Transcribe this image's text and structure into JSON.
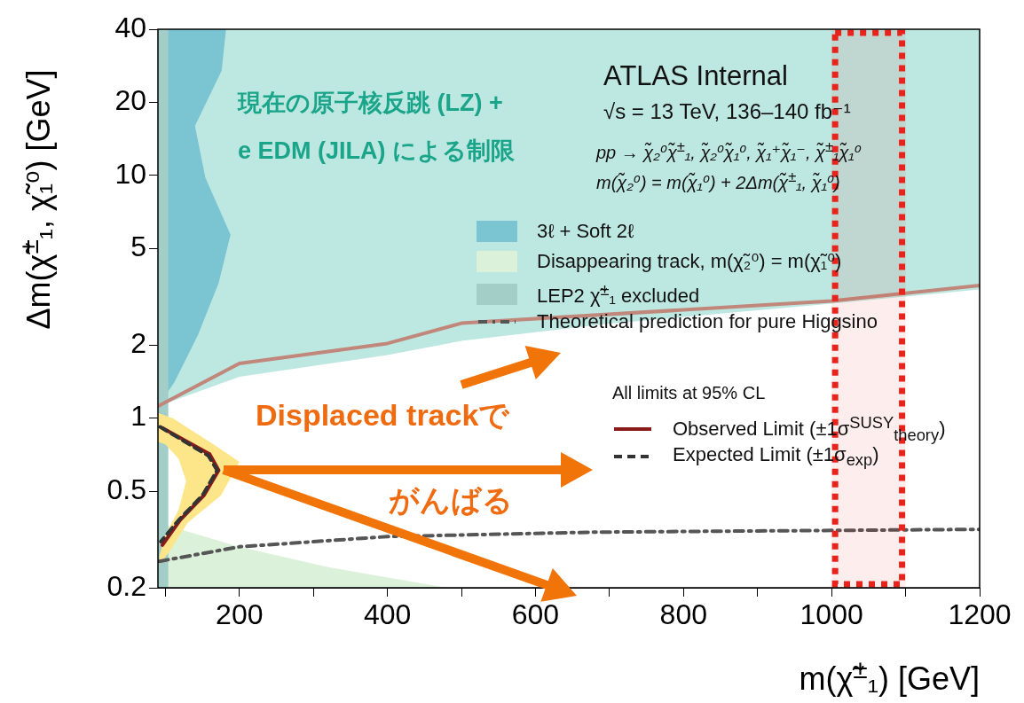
{
  "chart_data": {
    "type": "line",
    "xlabel": "m(χ̃$^{±}$₁) [GeV]",
    "ylabel": "Δm(χ̃$^{±}$₁, χ̃₁⁰) [GeV]",
    "log": "y",
    "legend": "right",
    "xlim": [
      90,
      1200
    ],
    "ylim": [
      0.2,
      40
    ],
    "xticks": [
      {
        "value": 100,
        "label": null
      },
      200,
      {
        "value": 300,
        "label": null
      },
      400,
      {
        "value": 500,
        "label": null
      },
      600,
      {
        "value": 700,
        "label": null
      },
      800,
      {
        "value": 900,
        "label": null
      },
      1000,
      {
        "value": 1100,
        "label": null
      },
      1200
    ],
    "yticks": [
      0.2,
      0.5,
      1,
      2,
      5,
      10,
      20,
      40
    ],
    "series": [
      {
        "type": "area",
        "color": "#bde7e1",
        "x": [
          90,
          200,
          400,
          500,
          700,
          1000,
          1200,
          1200,
          90
        ],
        "values": [
          1.12,
          1.48,
          1.82,
          2.08,
          2.45,
          2.96,
          3.39,
          40,
          40
        ]
      },
      {
        "type": "area",
        "name": "3ℓ + Soft 2ℓ",
        "color": "#7bc4d2",
        "x": [
          90,
          182,
          176,
          140,
          154,
          188,
          172,
          144,
          112,
          90
        ],
        "values": [
          40,
          40,
          27,
          16,
          9.8,
          5.7,
          3.6,
          2.2,
          1.4,
          1.12
        ]
      },
      {
        "type": "area",
        "name": "Disappearing track, m(χ̃₂⁰) = m(χ̃₁⁰)",
        "color": "#dcf1da",
        "x": [
          90,
          200,
          320,
          480,
          90
        ],
        "values": [
          0.37,
          0.295,
          0.243,
          0.2,
          0.2
        ]
      },
      {
        "type": "area",
        "name": "LEP2 χ̃$^{±}$₁ excluded",
        "color": "#a3cec8",
        "x": [
          90,
          104,
          104,
          90
        ],
        "values": [
          0.2,
          0.2,
          40,
          40
        ]
      },
      {
        "type": "line",
        "color": "#c0877a",
        "x": [
          90,
          200,
          400,
          500,
          1000,
          1200
        ],
        "values": [
          1.12,
          1.68,
          2.03,
          2.46,
          3.04,
          3.52
        ]
      },
      {
        "type": "area",
        "color": "#fde68a",
        "x": [
          90,
          110,
          165,
          200,
          175,
          130,
          105,
          92,
          92,
          100,
          118,
          128,
          118,
          100,
          90
        ],
        "values": [
          1.05,
          1.0,
          0.78,
          0.66,
          0.48,
          0.37,
          0.28,
          0.25,
          0.27,
          0.33,
          0.42,
          0.55,
          0.68,
          0.78,
          0.8
        ]
      },
      {
        "type": "line",
        "name": "Observed Limit (±1σ$^{SUSY}$$_{theory}$)",
        "color": "#8b1a1a",
        "x": [
          96,
          160,
          172,
          152,
          120,
          96
        ],
        "values": [
          0.91,
          0.71,
          0.61,
          0.48,
          0.38,
          0.3
        ]
      },
      {
        "type": "line",
        "name": "Expected Limit (±1σ$_{exp}$)",
        "color": "#333333",
        "line_style": "dashed",
        "x": [
          93,
          158,
          170,
          150,
          118,
          94
        ],
        "values": [
          0.92,
          0.7,
          0.61,
          0.48,
          0.38,
          0.31
        ]
      },
      {
        "type": "line",
        "name": "Theoretical prediction for pure Higgsino",
        "color": "#555555",
        "line_style": "dotted",
        "x": [
          92,
          200,
          400,
          680,
          1200
        ],
        "values": [
          0.257,
          0.295,
          0.325,
          0.339,
          0.348
        ]
      }
    ],
    "bands": [
      {
        "axis": "x",
        "from": 1000,
        "to": 1100,
        "color": "#e8231b"
      }
    ],
    "annotations": [
      "現在の原子核反跳 (LZ) +",
      "e EDM (JILA) による制限",
      "ATLAS Internal",
      "√s = 13 TeV, 136–140 fb⁻¹",
      "pp → χ̃₂⁰χ̃$^{±}$₁, χ̃₂⁰χ̃₁⁰, χ̃₁⁺χ̃₁⁻, χ̃$^{±}$₁χ̃₁⁰",
      "m(χ̃₂⁰) = m(χ̃₁⁰) + 2Δm(χ̃$^{±}$₁, χ̃₁⁰)",
      "Displaced trackで",
      "がんばる",
      "All limits at 95% CL"
    ]
  }
}
